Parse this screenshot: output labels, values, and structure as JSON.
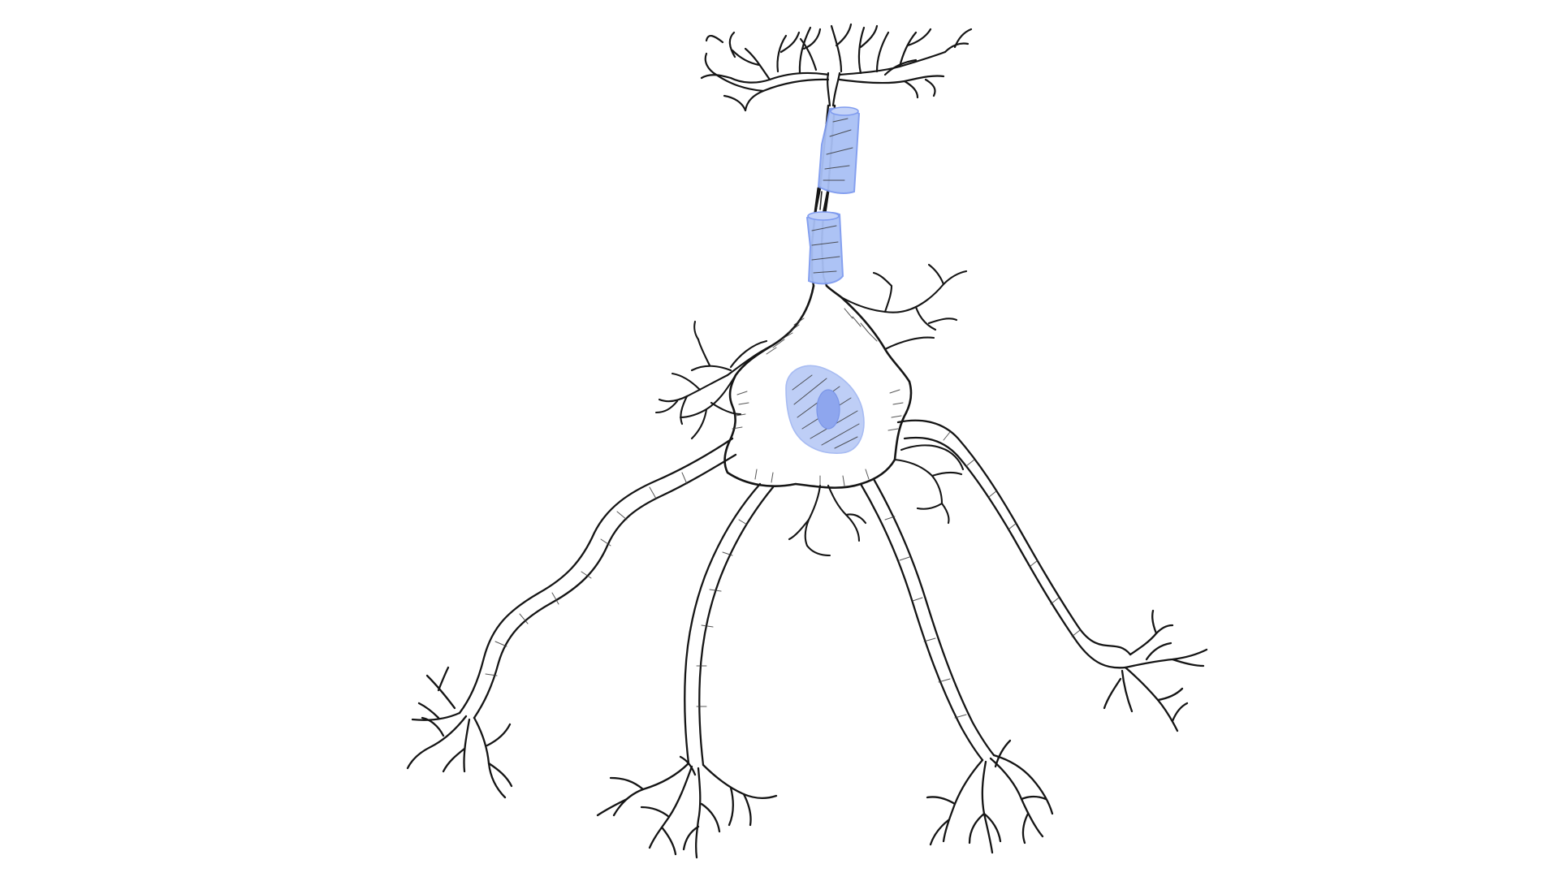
{
  "illustration": {
    "subject": "neuron",
    "style": "pencil-sketch",
    "background_color": "#ffffff",
    "outline_color": "#151515",
    "myelin_fill_color": "#a9c0f5",
    "myelin_stroke_color": "#7f9bef",
    "nucleus_fill_color": "#b8c9f6",
    "nucleolus_fill_color": "#8ea6ee",
    "parts": {
      "dendrite_count": 6,
      "myelin_sheath_segments": 2,
      "axon_terminal_branches": 1
    }
  }
}
